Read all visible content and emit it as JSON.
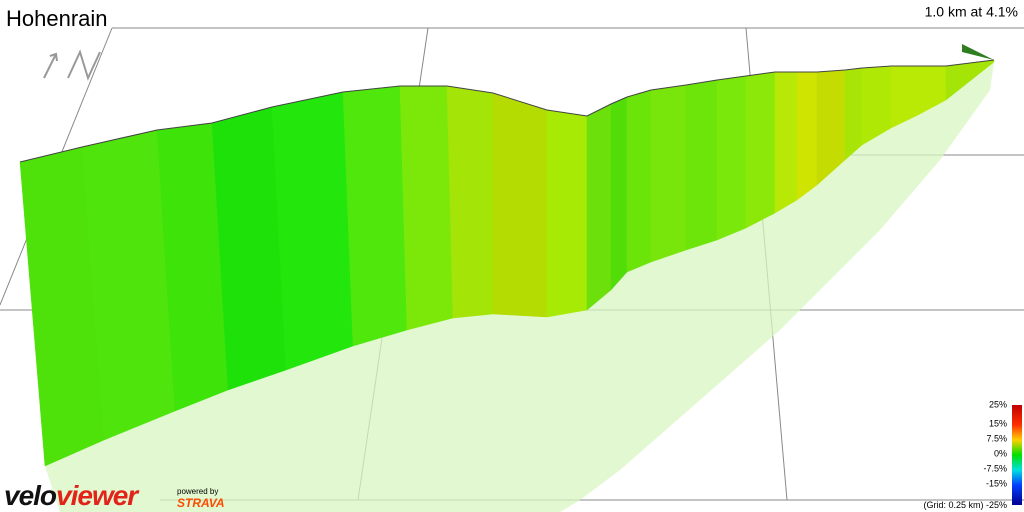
{
  "header": {
    "title": "Hohenrain",
    "summary": "1.0 km at 4.1%"
  },
  "legend": {
    "labels": [
      "25%",
      "15%",
      "7.5%",
      "0%",
      "-7.5%",
      "-15%",
      "-25%"
    ],
    "grid_note": "(Grid: 0.25 km)"
  },
  "branding": {
    "logo_a": "velo",
    "logo_b": "viewer",
    "powered": "powered by",
    "partner": "STRAVA"
  }
}
